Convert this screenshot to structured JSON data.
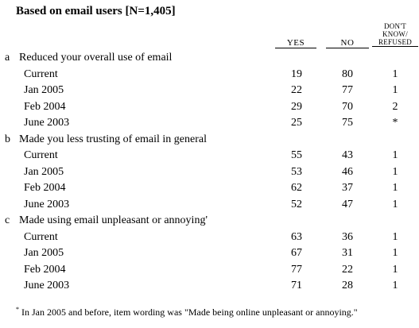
{
  "title": "Based on email users [N=1,405]",
  "headers": {
    "yes": "YES",
    "no": "NO",
    "dk": [
      "DON'T",
      "KNOW/",
      "REFUSED"
    ]
  },
  "questions": [
    {
      "letter": "a",
      "text": "Reduced your overall use of email",
      "rows": [
        {
          "label": "Current",
          "yes": "19",
          "no": "80",
          "dk": "1"
        },
        {
          "label": "Jan 2005",
          "yes": "22",
          "no": "77",
          "dk": "1"
        },
        {
          "label": "Feb 2004",
          "yes": "29",
          "no": "70",
          "dk": "2"
        },
        {
          "label": "June 2003",
          "yes": "25",
          "no": "75",
          "dk": "*"
        }
      ]
    },
    {
      "letter": "b",
      "text": "Made you less trusting of email in general",
      "rows": [
        {
          "label": "Current",
          "yes": "55",
          "no": "43",
          "dk": "1"
        },
        {
          "label": "Jan 2005",
          "yes": "53",
          "no": "46",
          "dk": "1"
        },
        {
          "label": "Feb 2004",
          "yes": "62",
          "no": "37",
          "dk": "1"
        },
        {
          "label": "June 2003",
          "yes": "52",
          "no": "47",
          "dk": "1"
        }
      ]
    },
    {
      "letter": "c",
      "text": "Made using email unpleasant or annoying'",
      "rows": [
        {
          "label": "Current",
          "yes": "63",
          "no": "36",
          "dk": "1"
        },
        {
          "label": "Jan 2005",
          "yes": "67",
          "no": "31",
          "dk": "1"
        },
        {
          "label": "Feb 2004",
          "yes": "77",
          "no": "22",
          "dk": "1"
        },
        {
          "label": "June 2003",
          "yes": "71",
          "no": "28",
          "dk": "1"
        }
      ]
    }
  ],
  "footnote": {
    "marker": "*",
    "text": "In Jan 2005 and before, item wording was \"Made being online unpleasant or annoying.\""
  }
}
